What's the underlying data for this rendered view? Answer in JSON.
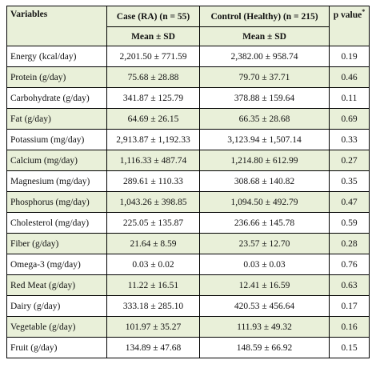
{
  "table": {
    "headers": {
      "variables": "Variables",
      "case": "Case (RA) (n = 55)",
      "control": "Control (Healthy) (n = 215)",
      "pvalue": "p value",
      "pvalue_mark": "*",
      "case_sub": "Mean ± SD",
      "control_sub": "Mean ± SD"
    },
    "rows": [
      {
        "variable": "Energy (kcal/day)",
        "case": "2,201.50 ± 771.59",
        "control": "2,382.00 ± 958.74",
        "p": "0.19"
      },
      {
        "variable": "Protein (g/day)",
        "case": "75.68 ± 28.88",
        "control": "79.70 ± 37.71",
        "p": "0.46"
      },
      {
        "variable": "Carbohydrate (g/day)",
        "case": "341.87 ± 125.79",
        "control": "378.88 ± 159.64",
        "p": "0.11"
      },
      {
        "variable": "Fat (g/day)",
        "case": "64.69 ± 26.15",
        "control": "66.35 ± 28.68",
        "p": "0.69"
      },
      {
        "variable": "Potassium (mg/day)",
        "case": "2,913.87 ± 1,192.33",
        "control": "3,123.94 ± 1,507.14",
        "p": "0.33"
      },
      {
        "variable": "Calcium (mg/day)",
        "case": "1,116.33 ± 487.74",
        "control": "1,214.80 ± 612.99",
        "p": "0.27"
      },
      {
        "variable": "Magnesium (mg/day)",
        "case": "289.61 ± 110.33",
        "control": "308.68 ± 140.82",
        "p": "0.35"
      },
      {
        "variable": "Phosphorus (mg/day)",
        "case": "1,043.26 ± 398.85",
        "control": "1,094.50 ± 492.79",
        "p": "0.47"
      },
      {
        "variable": "Cholesterol (mg/day)",
        "case": "225.05 ± 135.87",
        "control": "236.66 ± 145.78",
        "p": "0.59"
      },
      {
        "variable": "Fiber (g/day)",
        "case": "21.64 ± 8.59",
        "control": "23.57 ± 12.70",
        "p": "0.28"
      },
      {
        "variable": "Omega-3 (mg/day)",
        "case": "0.03 ± 0.02",
        "control": "0.03 ± 0.03",
        "p": "0.76"
      },
      {
        "variable": "Red Meat (g/day)",
        "case": "11.22 ± 16.51",
        "control": "12.41 ± 16.59",
        "p": "0.63"
      },
      {
        "variable": "Dairy (g/day)",
        "case": "333.18 ± 285.10",
        "control": "420.53 ± 456.64",
        "p": "0.17"
      },
      {
        "variable": "Vegetable (g/day)",
        "case": "101.97 ± 35.27",
        "control": "111.93 ± 49.32",
        "p": "0.16"
      },
      {
        "variable": "Fruit (g/day)",
        "case": "134.89 ± 47.68",
        "control": "148.59 ± 66.92",
        "p": "0.15"
      }
    ]
  }
}
